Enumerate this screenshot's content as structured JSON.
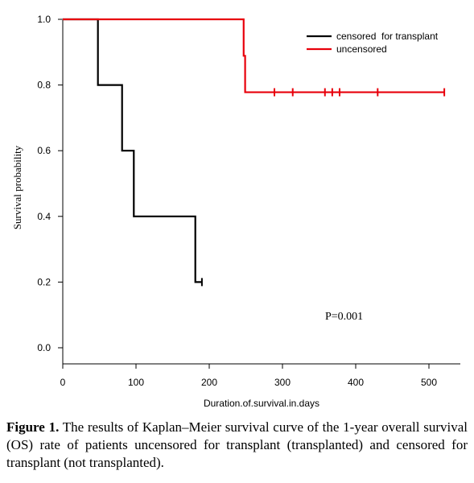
{
  "chart_data": {
    "type": "line",
    "subtype": "kaplan-meier step",
    "xlabel": "Duration.of.survival.in.days",
    "ylabel": "Survival probability",
    "xlim": [
      0,
      540
    ],
    "ylim": [
      0,
      1.0
    ],
    "x_ticks": [
      0,
      100,
      200,
      300,
      400,
      500
    ],
    "y_ticks": [
      0.0,
      0.2,
      0.4,
      0.6,
      0.8,
      1.0
    ],
    "x_tick_labels": [
      "0",
      "100",
      "200",
      "300",
      "400",
      "500"
    ],
    "y_tick_labels": [
      "0.0",
      "0.2",
      "0.4",
      "0.6",
      "0.8",
      "1.0"
    ],
    "grid": false,
    "legend_position": "top-right",
    "series": [
      {
        "name": "censored  for transplant",
        "color": "#000000",
        "steps": [
          [
            0,
            1.0
          ],
          [
            48,
            0.8
          ],
          [
            81,
            0.6
          ],
          [
            97,
            0.4
          ],
          [
            181,
            0.2
          ],
          [
            190,
            0.2
          ]
        ],
        "censor_marks": [
          [
            190,
            0.2
          ]
        ]
      },
      {
        "name": "uncensored",
        "color": "#e8000b",
        "steps": [
          [
            0,
            1.0
          ],
          [
            247,
            0.889
          ],
          [
            249,
            0.778
          ],
          [
            521,
            0.778
          ]
        ],
        "censor_marks": [
          [
            289,
            0.778
          ],
          [
            314,
            0.778
          ],
          [
            358,
            0.778
          ],
          [
            368,
            0.778
          ],
          [
            378,
            0.778
          ],
          [
            430,
            0.778
          ],
          [
            521,
            0.778
          ]
        ]
      }
    ],
    "annotations": [
      {
        "text": "P=0.001",
        "x": 355,
        "y": 0.1
      }
    ]
  },
  "caption": {
    "label": "Figure 1.",
    "text": " The results of Kaplan–Meier survival curve of the 1-year overall survival (OS) rate of patients uncensored for transplant (transplanted) and censored for transplant (not transplanted)."
  }
}
